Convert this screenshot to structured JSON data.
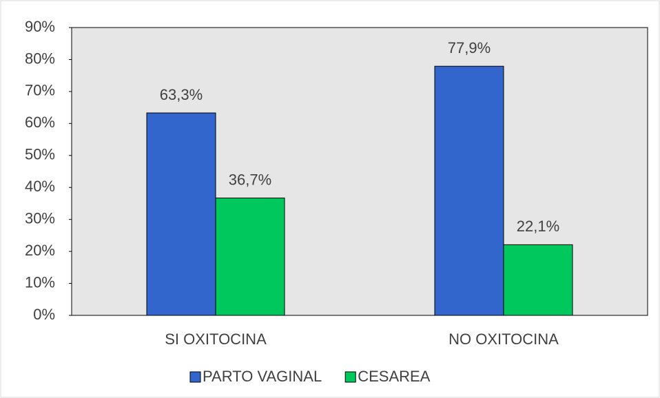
{
  "chart_data": {
    "type": "bar",
    "categories": [
      "SI OXITOCINA",
      "NO OXITOCINA"
    ],
    "series": [
      {
        "name": "PARTO VAGINAL",
        "color": "#3366cc",
        "values": [
          63.3,
          77.9
        ],
        "value_labels": [
          "63,3%",
          "77,9%"
        ]
      },
      {
        "name": "CESAREA",
        "color": "#00c85c",
        "values": [
          36.7,
          22.1
        ],
        "value_labels": [
          "36,7%",
          "22,1%"
        ]
      }
    ],
    "ylim": [
      0,
      90
    ],
    "yticks": [
      {
        "value": 0,
        "label": "0%"
      },
      {
        "value": 10,
        "label": "10%"
      },
      {
        "value": 20,
        "label": "20%"
      },
      {
        "value": 30,
        "label": "30%"
      },
      {
        "value": 40,
        "label": "40%"
      },
      {
        "value": 50,
        "label": "50%"
      },
      {
        "value": 60,
        "label": "60%"
      },
      {
        "value": 70,
        "label": "70%"
      },
      {
        "value": 80,
        "label": "80%"
      },
      {
        "value": 90,
        "label": "90%"
      }
    ],
    "legend": "bottom"
  }
}
